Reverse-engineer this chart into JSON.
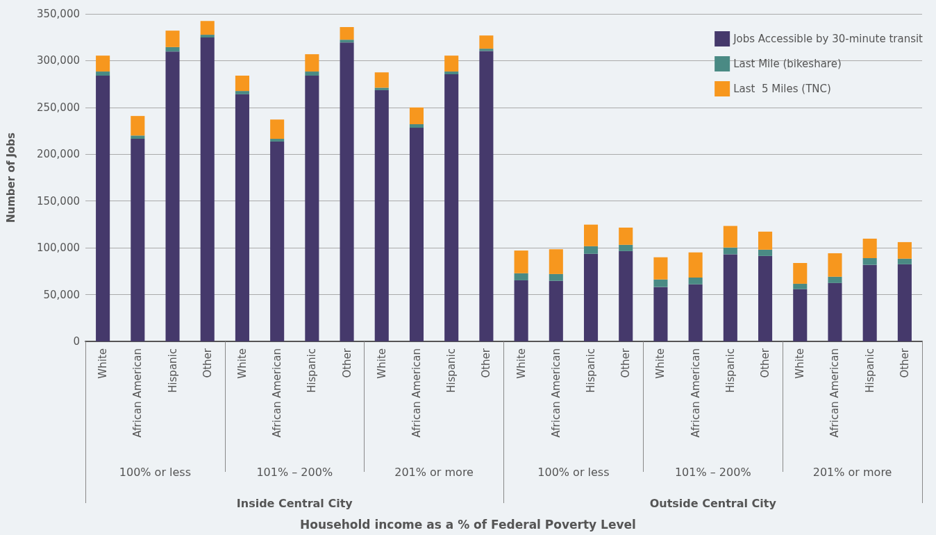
{
  "chart_data": {
    "type": "bar",
    "stacked": true,
    "ylabel": "Number of Jobs",
    "categories": [
      "White",
      "African American",
      "Hispanic",
      "Other",
      "White",
      "African American",
      "Hispanic",
      "Other",
      "White",
      "African American",
      "Hispanic",
      "Other",
      "White",
      "African American",
      "Hispanic",
      "Other",
      "White",
      "African American",
      "Hispanic",
      "Other",
      "White",
      "African American",
      "Hispanic",
      "Other"
    ],
    "series": [
      {
        "name": "Jobs Accessible by 30-minute transit",
        "color": "#45396b",
        "values": [
          284000,
          216500,
          309800,
          324800,
          264100,
          213600,
          284000,
          319500,
          268500,
          228300,
          285500,
          310400,
          65300,
          64700,
          93600,
          96500,
          58100,
          61000,
          93100,
          91300,
          55800,
          62400,
          81800,
          82400
        ]
      },
      {
        "name": "Last Mile (bikeshare)",
        "color": "#4a8a84",
        "values": [
          4400,
          3500,
          4700,
          2900,
          3500,
          2900,
          4400,
          2900,
          2600,
          3800,
          2900,
          2400,
          7500,
          7300,
          8100,
          6700,
          8100,
          7200,
          7200,
          6700,
          5800,
          6700,
          7200,
          6000
        ]
      },
      {
        "name": "Last  5 Miles (TNC)",
        "color": "#f7971e",
        "values": [
          17000,
          20900,
          17600,
          14700,
          16400,
          20600,
          18500,
          13500,
          16400,
          17900,
          17000,
          14100,
          24300,
          26500,
          23100,
          18400,
          23700,
          26900,
          23100,
          19300,
          22200,
          25100,
          20800,
          17700
        ]
      }
    ],
    "annotations": [
      "100% or less",
      "101% – 200%",
      "201% or more",
      "100% or less",
      "101% – 200%",
      "201% or more",
      "Inside Central City",
      "Outside Central City",
      "Household income as a % of Federal Poverty Level"
    ],
    "ylim": [
      0,
      350000
    ],
    "yticks": [
      0,
      {
        "value": 50000,
        "label": "50,000"
      },
      {
        "value": 100000,
        "label": "100,000"
      },
      {
        "value": 150000,
        "label": "150,000"
      },
      {
        "value": 200000,
        "label": "200,000"
      },
      {
        "value": 250000,
        "label": "250,000"
      },
      {
        "value": 300000,
        "label": "300,000"
      },
      {
        "value": 350000,
        "label": "350,000"
      }
    ],
    "grid": "y",
    "legend": "top right"
  }
}
